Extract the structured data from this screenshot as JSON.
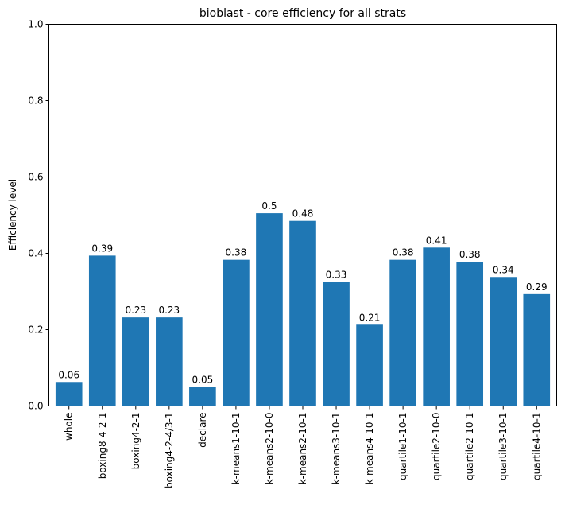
{
  "chart_data": {
    "type": "bar",
    "title": "bioblast - core efficiency for all strats",
    "xlabel": "",
    "ylabel": "Efficiency level",
    "ylim": [
      0,
      1
    ],
    "yticks": [
      "0.0",
      "0.2",
      "0.4",
      "0.6",
      "0.8",
      "1.0"
    ],
    "grid": false,
    "bar_color": "#1f77b4",
    "categories": [
      "whole",
      "boxing8-4-2-1",
      "boxing4-2-1",
      "boxing4-2-4/3-1",
      "declare",
      "k-means1-10-1",
      "k-means2-10-0",
      "k-means2-10-1",
      "k-means3-10-1",
      "k-means4-10-1",
      "quartile1-10-1",
      "quartile2-10-0",
      "quartile2-10-1",
      "quartile3-10-1",
      "quartile4-10-1"
    ],
    "values": [
      0.063,
      0.394,
      0.232,
      0.232,
      0.05,
      0.383,
      0.505,
      0.485,
      0.325,
      0.213,
      0.383,
      0.415,
      0.378,
      0.338,
      0.293
    ],
    "labels": [
      "0.06",
      "0.39",
      "0.23",
      "0.23",
      "0.05",
      "0.38",
      "0.5",
      "0.48",
      "0.33",
      "0.21",
      "0.38",
      "0.41",
      "0.38",
      "0.34",
      "0.29"
    ]
  }
}
